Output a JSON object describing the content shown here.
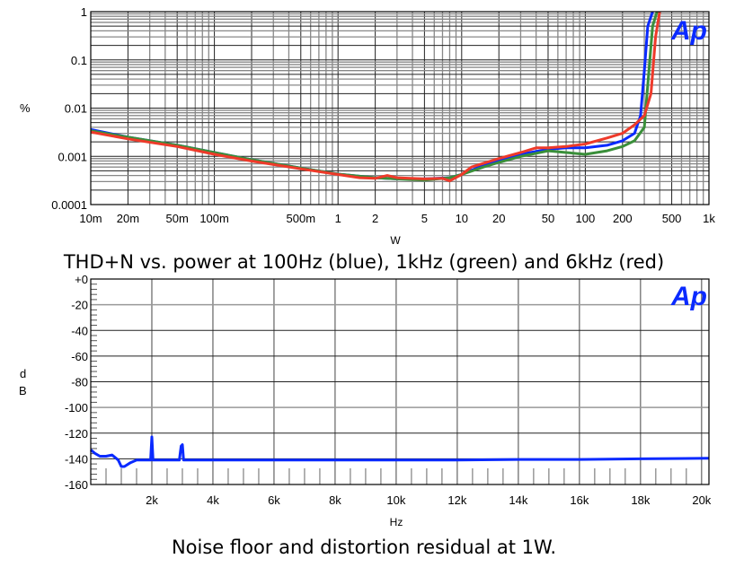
{
  "chart_data": [
    {
      "type": "line",
      "title": "THD+N vs. power at 100Hz (blue), 1kHz (green) and 6kHz (red)",
      "xlabel": "W",
      "ylabel": "%",
      "x_scale": "log",
      "y_scale": "log",
      "xlim": [
        0.01,
        1000
      ],
      "ylim": [
        0.0001,
        1
      ],
      "grid": true,
      "logo": "Ap",
      "x_ticks": [
        {
          "v": 0.01,
          "label": "10m"
        },
        {
          "v": 0.02,
          "label": "20m"
        },
        {
          "v": 0.05,
          "label": "50m"
        },
        {
          "v": 0.1,
          "label": "100m"
        },
        {
          "v": 0.5,
          "label": "500m"
        },
        {
          "v": 1,
          "label": "1"
        },
        {
          "v": 2,
          "label": "2"
        },
        {
          "v": 5,
          "label": "5"
        },
        {
          "v": 10,
          "label": "10"
        },
        {
          "v": 20,
          "label": "20"
        },
        {
          "v": 50,
          "label": "50"
        },
        {
          "v": 100,
          "label": "100"
        },
        {
          "v": 200,
          "label": "200"
        },
        {
          "v": 500,
          "label": "500"
        },
        {
          "v": 1000,
          "label": "1k"
        }
      ],
      "y_ticks": [
        {
          "v": 1,
          "label": "1"
        },
        {
          "v": 0.1,
          "label": "0.1"
        },
        {
          "v": 0.01,
          "label": "0.01"
        },
        {
          "v": 0.001,
          "label": "0.001"
        },
        {
          "v": 0.0001,
          "label": "0.0001"
        }
      ],
      "series": [
        {
          "name": "100Hz",
          "color": "#0a2aff",
          "x": [
            0.01,
            0.02,
            0.05,
            0.1,
            0.2,
            0.5,
            1,
            2,
            3,
            5,
            8,
            10,
            15,
            20,
            30,
            50,
            70,
            100,
            150,
            200,
            250,
            280,
            300,
            320,
            350
          ],
          "y": [
            0.0036,
            0.0025,
            0.0017,
            0.0012,
            0.00085,
            0.00057,
            0.00043,
            0.00036,
            0.00034,
            0.00034,
            0.00036,
            0.00042,
            0.00065,
            0.0008,
            0.0011,
            0.0014,
            0.0015,
            0.0015,
            0.0017,
            0.0021,
            0.003,
            0.007,
            0.06,
            0.5,
            1
          ]
        },
        {
          "name": "1kHz",
          "color": "#3a8f3a",
          "x": [
            0.01,
            0.02,
            0.05,
            0.1,
            0.2,
            0.5,
            1,
            2,
            3,
            5,
            8,
            10,
            15,
            20,
            30,
            50,
            70,
            100,
            150,
            200,
            250,
            300,
            320,
            350,
            380
          ],
          "y": [
            0.0034,
            0.0025,
            0.0017,
            0.0012,
            0.00085,
            0.00057,
            0.00043,
            0.00036,
            0.00034,
            0.00032,
            0.00036,
            0.00042,
            0.0006,
            0.00075,
            0.001,
            0.0013,
            0.0012,
            0.0011,
            0.0013,
            0.0016,
            0.0021,
            0.004,
            0.03,
            0.5,
            1
          ]
        },
        {
          "name": "6kHz",
          "color": "#ee3a2a",
          "x": [
            0.01,
            0.02,
            0.05,
            0.1,
            0.2,
            0.5,
            1,
            1.5,
            2,
            2.5,
            3,
            5,
            7,
            8,
            10,
            12,
            20,
            30,
            40,
            50,
            70,
            100,
            150,
            200,
            250,
            300,
            340,
            370,
            400
          ],
          "y": [
            0.0032,
            0.0023,
            0.0016,
            0.0011,
            0.0008,
            0.00055,
            0.00042,
            0.00036,
            0.00035,
            0.0004,
            0.00036,
            0.00034,
            0.00035,
            0.00031,
            0.00042,
            0.0006,
            0.0009,
            0.0012,
            0.0015,
            0.0015,
            0.0016,
            0.0018,
            0.0024,
            0.003,
            0.0045,
            0.007,
            0.02,
            0.3,
            1
          ]
        }
      ]
    },
    {
      "type": "line",
      "title": "Noise floor and distortion residual at 1W.",
      "xlabel": "Hz",
      "ylabel": "dB",
      "ylabel_lines": [
        "d",
        "B"
      ],
      "x_scale": "linear",
      "xlim": [
        0,
        20240
      ],
      "ylim": [
        -160,
        0
      ],
      "grid": true,
      "logo": "Ap",
      "x_ticks": [
        {
          "v": 2000,
          "label": "2k"
        },
        {
          "v": 4000,
          "label": "4k"
        },
        {
          "v": 6000,
          "label": "6k"
        },
        {
          "v": 8000,
          "label": "8k"
        },
        {
          "v": 10000,
          "label": "10k"
        },
        {
          "v": 12000,
          "label": "12k"
        },
        {
          "v": 14000,
          "label": "14k"
        },
        {
          "v": 16000,
          "label": "16k"
        },
        {
          "v": 18000,
          "label": "18k"
        },
        {
          "v": 20000,
          "label": "20k"
        }
      ],
      "y_ticks": [
        {
          "v": 0,
          "label": "+0"
        },
        {
          "v": -20,
          "label": "-20"
        },
        {
          "v": -40,
          "label": "-40"
        },
        {
          "v": -60,
          "label": "-60"
        },
        {
          "v": -80,
          "label": "-80"
        },
        {
          "v": -100,
          "label": "-100"
        },
        {
          "v": -120,
          "label": "-120"
        },
        {
          "v": -140,
          "label": "-140"
        },
        {
          "v": -160,
          "label": "-160"
        }
      ],
      "series": [
        {
          "name": "Residual",
          "color": "#0a2aff",
          "x": [
            0,
            150,
            300,
            500,
            700,
            900,
            1000,
            1100,
            1300,
            1500,
            1900,
            1960,
            2000,
            2040,
            2100,
            2900,
            2960,
            3000,
            3040,
            3100,
            4000,
            6000,
            8000,
            10000,
            12000,
            14000,
            16000,
            18000,
            20240
          ],
          "y": [
            -133,
            -136,
            -138,
            -138,
            -137,
            -141,
            -146,
            -146,
            -143,
            -141,
            -141,
            -141,
            -123,
            -141,
            -141,
            -141,
            -130,
            -129,
            -141,
            -141,
            -141,
            -141,
            -141,
            -141,
            -141,
            -140.5,
            -140.5,
            -140,
            -139.5
          ]
        }
      ]
    }
  ],
  "captions": {
    "top": "THD+N vs. power at 100Hz (blue), 1kHz (green) and 6kHz (red)",
    "bottom": "Noise floor and distortion residual at 1W."
  },
  "axes": {
    "top_x_unit": "W",
    "top_y_unit": "%",
    "bottom_x_unit": "Hz",
    "bottom_y_unit_d": "d",
    "bottom_y_unit_b": "B"
  },
  "logo": {
    "text": "Ap",
    "color": "#0a2aff"
  }
}
